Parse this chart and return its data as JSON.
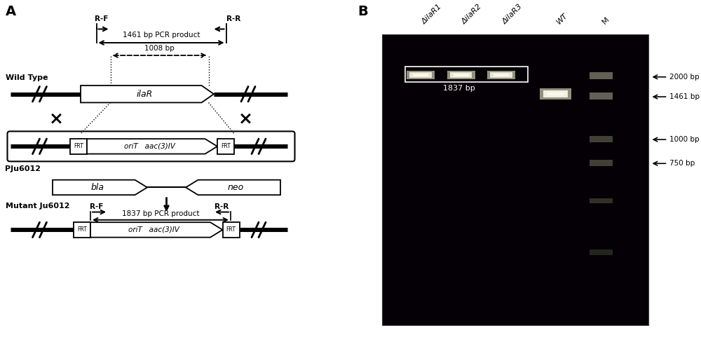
{
  "fig_width": 10.0,
  "fig_height": 4.88,
  "panel_A_label": "A",
  "panel_B_label": "B",
  "gel_bg_color": "#050005",
  "gel_band_color_bright": "#e8e8d0",
  "gel_band_color_dim": "#606055",
  "gel_band_color_dimmer": "#404038",
  "lane_labels": [
    "ΔilaR1",
    "ΔilaR2",
    "ΔilaR3",
    "WT",
    "M"
  ],
  "marker_labels": [
    "2000 bp",
    "1461 bp",
    "1000 bp",
    "750 bp"
  ],
  "band_label": "1837 bp",
  "wild_type_label": "Wild Type",
  "pju6012_label": "PJu6012",
  "mutant_label": "Mutant Ju6012",
  "pcr_product_1461": "1461 bp PCR product",
  "pcr_product_1008": "1008 bp",
  "pcr_product_1837": "1837 bp PCR product",
  "primer_F": "R-F",
  "primer_R": "R-R",
  "gene_ilaR": "ilaR",
  "gene_oriT": "oriT",
  "gene_aac": "aac(3)IV",
  "gene_FRT": "FRT",
  "gene_bla": "bla",
  "gene_neo": "neo"
}
